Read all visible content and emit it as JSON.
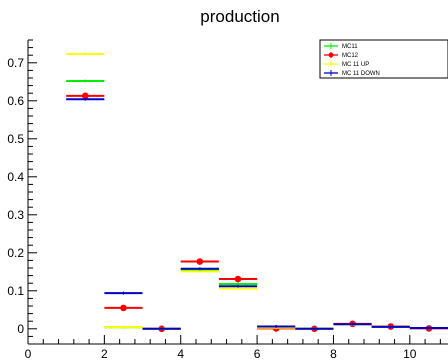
{
  "chart_data": {
    "type": "scatter",
    "title": "production",
    "xlabel": "",
    "ylabel": "",
    "xlim": [
      0,
      11
    ],
    "ylim": [
      -0.04,
      0.76
    ],
    "x_ticks": [
      0,
      2,
      4,
      6,
      8,
      10
    ],
    "y_ticks": [
      0,
      0.1,
      0.2,
      0.3,
      0.4,
      0.5,
      0.6,
      0.7
    ],
    "x_tick_labels": [
      "0",
      "2",
      "4",
      "6",
      "8",
      "10"
    ],
    "y_tick_labels": [
      "0",
      "0.1",
      "0.2",
      "0.3",
      "0.4",
      "0.5",
      "0.6",
      "0.7"
    ],
    "legend_position": "top-right",
    "series": [
      {
        "name": "MC11",
        "color": "#00ee00",
        "marker": "none",
        "x": [
          1.5,
          2.5,
          3.5,
          4.5,
          5.5,
          6.5,
          7.5,
          8.5,
          9.5,
          10.5
        ],
        "y": [
          0.652,
          0.004,
          0.0,
          0.155,
          0.118,
          0.003,
          0.0,
          0.012,
          0.005,
          0.002
        ],
        "x_halfwidth": 0.5
      },
      {
        "name": "MC12",
        "color": "#ff0000",
        "marker": "circle",
        "x": [
          1.5,
          2.5,
          3.5,
          4.5,
          5.5,
          6.5,
          7.5,
          8.5,
          9.5,
          10.5
        ],
        "y": [
          0.613,
          0.055,
          0.0,
          0.177,
          0.131,
          0.001,
          0.0,
          0.013,
          0.006,
          0.001
        ],
        "x_halfwidth": 0.5
      },
      {
        "name": "MC 11 UP",
        "color": "#ffff00",
        "marker": "none",
        "x": [
          1.5,
          2.5,
          3.5,
          4.5,
          5.5,
          6.5,
          7.5,
          8.5,
          9.5,
          10.5
        ],
        "y": [
          0.723,
          0.004,
          0.0,
          0.151,
          0.106,
          0.003,
          0.0,
          0.011,
          0.005,
          0.002
        ],
        "x_halfwidth": 0.5
      },
      {
        "name": "MC 11 DOWN",
        "color": "#0000cc",
        "marker": "none",
        "x": [
          1.5,
          2.5,
          3.5,
          4.5,
          5.5,
          6.5,
          7.5,
          8.5,
          9.5,
          10.5
        ],
        "y": [
          0.604,
          0.094,
          0.0,
          0.158,
          0.112,
          0.006,
          0.0,
          0.012,
          0.005,
          0.002
        ],
        "x_halfwidth": 0.5
      }
    ]
  }
}
